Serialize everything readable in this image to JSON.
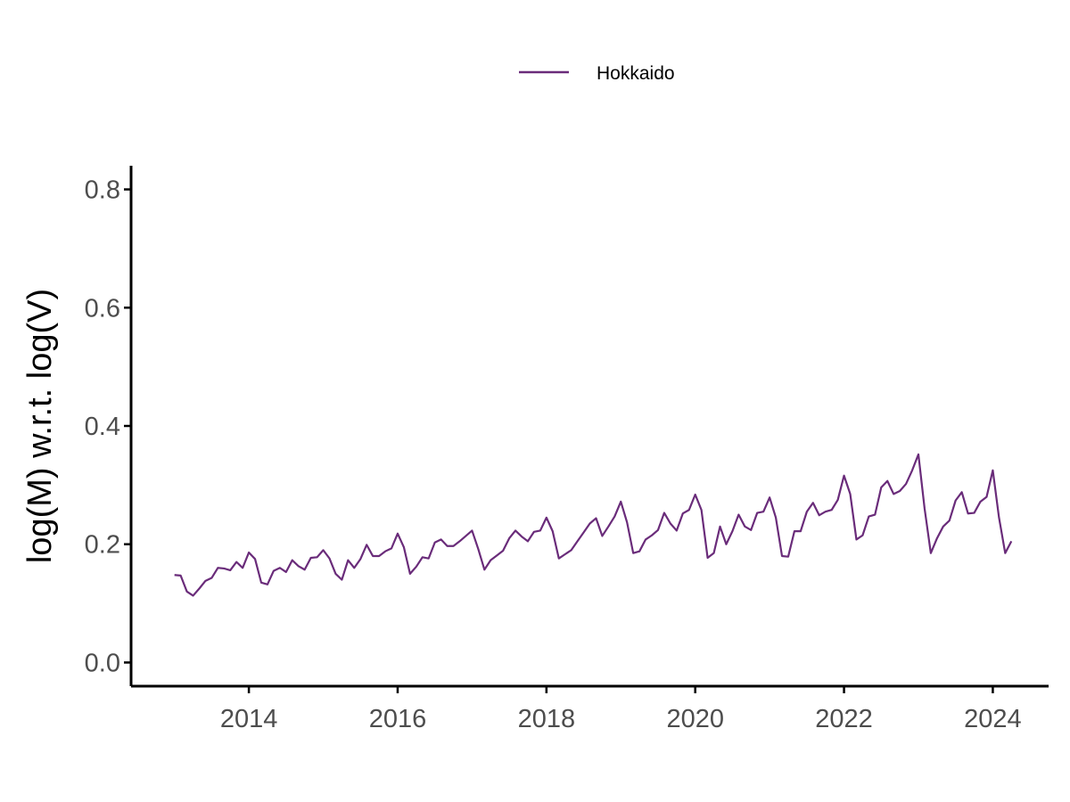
{
  "chart_data": {
    "type": "line",
    "title": "",
    "xlabel": "",
    "ylabel": "log(M) w.r.t. log(V)",
    "x_tick_labels": [
      "2014",
      "2016",
      "2018",
      "2020",
      "2022",
      "2024"
    ],
    "y_tick_labels": [
      "0.0",
      "0.2",
      "0.4",
      "0.6",
      "0.8"
    ],
    "xlim": [
      "2012-06",
      "2024-10"
    ],
    "ylim": [
      -0.04,
      0.84
    ],
    "grid": false,
    "legend": {
      "position": "top",
      "entries": [
        "Hokkaido"
      ]
    },
    "series": [
      {
        "name": "Hokkaido",
        "color": "#6a2c7a",
        "start": "2013-01",
        "frequency": "monthly",
        "values": [
          0.148,
          0.147,
          0.12,
          0.113,
          0.125,
          0.138,
          0.143,
          0.16,
          0.159,
          0.156,
          0.17,
          0.16,
          0.186,
          0.175,
          0.135,
          0.132,
          0.155,
          0.16,
          0.153,
          0.173,
          0.163,
          0.157,
          0.177,
          0.178,
          0.19,
          0.176,
          0.15,
          0.14,
          0.173,
          0.16,
          0.175,
          0.199,
          0.18,
          0.18,
          0.188,
          0.193,
          0.218,
          0.195,
          0.15,
          0.162,
          0.178,
          0.176,
          0.203,
          0.208,
          0.197,
          0.197,
          0.205,
          0.214,
          0.223,
          0.192,
          0.157,
          0.173,
          0.181,
          0.189,
          0.21,
          0.223,
          0.213,
          0.205,
          0.221,
          0.223,
          0.245,
          0.222,
          0.176,
          0.183,
          0.19,
          0.205,
          0.22,
          0.235,
          0.244,
          0.214,
          0.23,
          0.247,
          0.272,
          0.237,
          0.185,
          0.188,
          0.208,
          0.215,
          0.224,
          0.253,
          0.235,
          0.223,
          0.252,
          0.258,
          0.284,
          0.258,
          0.177,
          0.185,
          0.23,
          0.2,
          0.222,
          0.25,
          0.23,
          0.224,
          0.253,
          0.255,
          0.279,
          0.245,
          0.18,
          0.179,
          0.222,
          0.222,
          0.255,
          0.27,
          0.249,
          0.255,
          0.258,
          0.275,
          0.316,
          0.285,
          0.208,
          0.215,
          0.247,
          0.25,
          0.296,
          0.307,
          0.285,
          0.29,
          0.302,
          0.325,
          0.352,
          0.26,
          0.185,
          0.21,
          0.23,
          0.24,
          0.274,
          0.288,
          0.252,
          0.253,
          0.272,
          0.28,
          0.325,
          0.245,
          0.185,
          0.205
        ]
      }
    ]
  }
}
